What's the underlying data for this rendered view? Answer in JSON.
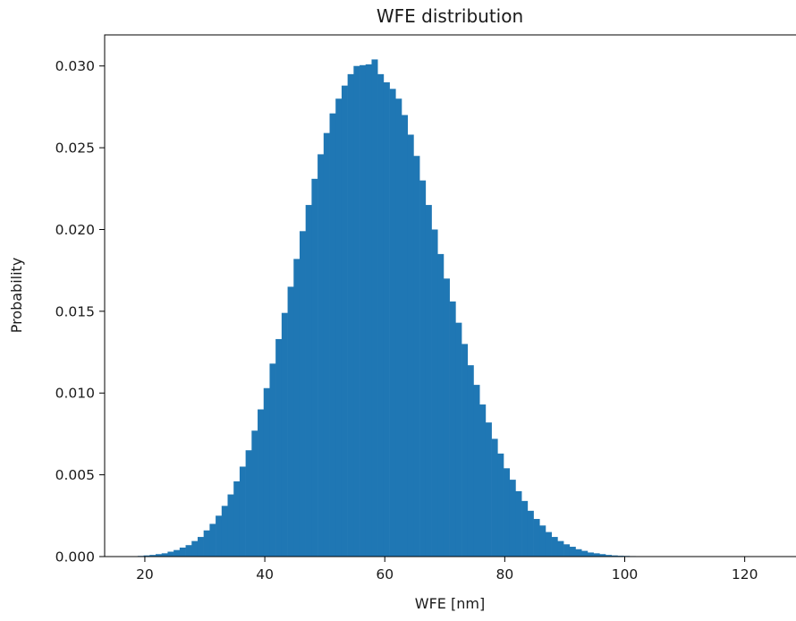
{
  "chart_data": {
    "type": "bar",
    "title": "WFE distribution",
    "xlabel": "WFE [nm]",
    "ylabel": "Probability",
    "xlim": [
      13.3,
      128.7
    ],
    "ylim": [
      0,
      0.0319
    ],
    "xticks": [
      "20",
      "40",
      "60",
      "80",
      "100",
      "120"
    ],
    "yticks": [
      "0.000",
      "0.005",
      "0.010",
      "0.015",
      "0.020",
      "0.025",
      "0.030"
    ],
    "bar_color": "#1f77b4",
    "bin_start": 17.8,
    "bin_width": 1.0,
    "values": [
      2e-05,
      4e-05,
      7e-05,
      0.0001,
      0.00015,
      0.0002,
      0.0003,
      0.0004,
      0.00055,
      0.0007,
      0.00095,
      0.0012,
      0.0016,
      0.002,
      0.0025,
      0.0031,
      0.0038,
      0.0046,
      0.0055,
      0.0065,
      0.0077,
      0.009,
      0.0103,
      0.0118,
      0.0133,
      0.0149,
      0.0165,
      0.0182,
      0.0199,
      0.0215,
      0.0231,
      0.0246,
      0.0259,
      0.0271,
      0.028,
      0.0288,
      0.0295,
      0.03,
      0.03005,
      0.0301,
      0.0304,
      0.0295,
      0.029,
      0.0286,
      0.028,
      0.027,
      0.0258,
      0.0245,
      0.023,
      0.0215,
      0.02,
      0.0185,
      0.017,
      0.0156,
      0.0143,
      0.013,
      0.0117,
      0.0105,
      0.0093,
      0.0082,
      0.0072,
      0.0063,
      0.0054,
      0.0047,
      0.004,
      0.0034,
      0.0028,
      0.0023,
      0.0019,
      0.0015,
      0.0012,
      0.00095,
      0.00075,
      0.0006,
      0.00045,
      0.00035,
      0.00025,
      0.0002,
      0.00015,
      0.0001,
      7e-05,
      5e-05,
      4e-05,
      3e-05,
      2e-05,
      2e-05,
      1e-05,
      1e-05,
      1e-05,
      1e-05,
      1e-05,
      1e-05,
      1e-05,
      1e-05,
      1e-05,
      1e-05,
      1e-05,
      1e-05,
      1e-05,
      1e-05
    ]
  }
}
